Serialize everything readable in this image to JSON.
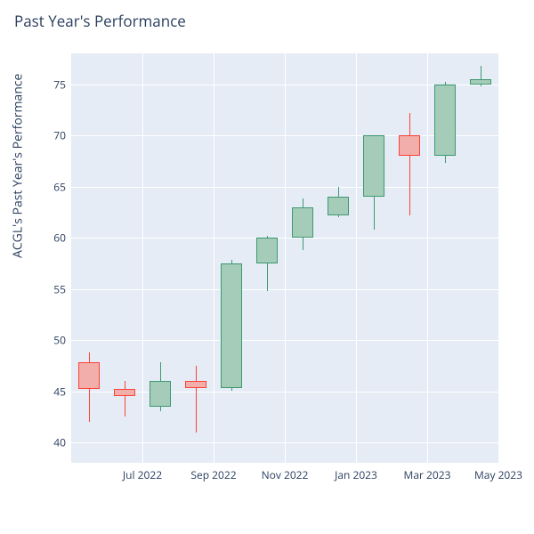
{
  "title": "Past Year's Performance",
  "ylabel": "ACGL's Past Year's Performance",
  "plot": {
    "background_color": "#e5ecf6",
    "grid_color": "#ffffff",
    "ylim": [
      38,
      78
    ],
    "yticks": [
      40,
      45,
      50,
      55,
      60,
      65,
      70,
      75
    ],
    "xticks": [
      {
        "label": "Jul 2022",
        "index": 1.5
      },
      {
        "label": "Sep 2022",
        "index": 3.5
      },
      {
        "label": "Nov 2022",
        "index": 5.5
      },
      {
        "label": "Jan 2023",
        "index": 7.5
      },
      {
        "label": "Mar 2023",
        "index": 9.5
      },
      {
        "label": "May 2023",
        "index": 11.5
      }
    ],
    "candle_width": 24,
    "colors": {
      "up_fill": "#a5ccb8",
      "up_line": "#3d9970",
      "down_fill": "#f1aeab",
      "down_line": "#ff4136"
    },
    "candles": [
      {
        "open": 47.8,
        "close": 45.2,
        "high": 48.8,
        "low": 42.0,
        "dir": "down"
      },
      {
        "open": 45.2,
        "close": 44.5,
        "high": 46.0,
        "low": 42.5,
        "dir": "down"
      },
      {
        "open": 43.5,
        "close": 46.0,
        "high": 47.8,
        "low": 43.0,
        "dir": "up"
      },
      {
        "open": 46.0,
        "close": 45.3,
        "high": 47.5,
        "low": 41.0,
        "dir": "down"
      },
      {
        "open": 45.3,
        "close": 57.5,
        "high": 57.8,
        "low": 45.0,
        "dir": "up"
      },
      {
        "open": 57.5,
        "close": 60.0,
        "high": 60.2,
        "low": 54.8,
        "dir": "up"
      },
      {
        "open": 60.0,
        "close": 63.0,
        "high": 63.8,
        "low": 58.8,
        "dir": "up"
      },
      {
        "open": 62.2,
        "close": 64.0,
        "high": 65.0,
        "low": 62.0,
        "dir": "up"
      },
      {
        "open": 64.0,
        "close": 70.0,
        "high": 70.0,
        "low": 60.8,
        "dir": "up"
      },
      {
        "open": 70.0,
        "close": 68.0,
        "high": 72.2,
        "low": 62.2,
        "dir": "down"
      },
      {
        "open": 68.0,
        "close": 75.0,
        "high": 75.2,
        "low": 67.3,
        "dir": "up"
      },
      {
        "open": 75.0,
        "close": 75.5,
        "high": 76.8,
        "low": 74.8,
        "dir": "up"
      }
    ]
  }
}
